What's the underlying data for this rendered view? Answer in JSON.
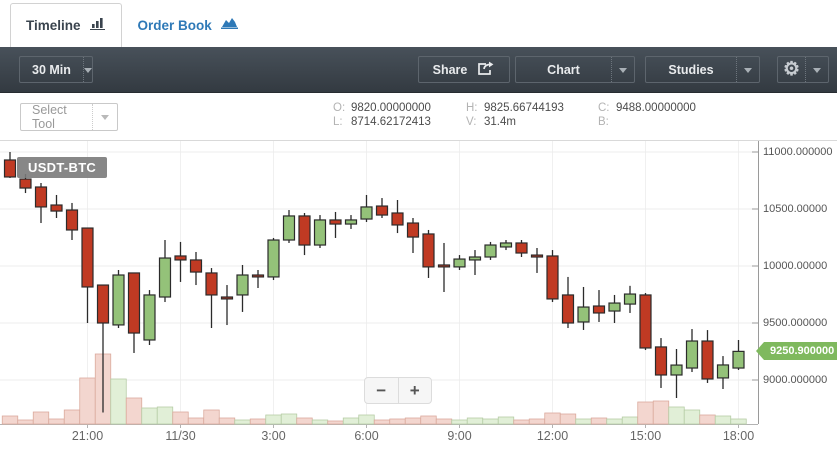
{
  "tabs": {
    "timeline": "Timeline",
    "order_book": "Order Book"
  },
  "toolbar": {
    "interval": "30 Min",
    "share": "Share",
    "chart": "Chart",
    "studies": "Studies",
    "settings_glyph": "⚙"
  },
  "subtoolbar": {
    "select_tool": "Select Tool",
    "legend": {
      "o_label": "O:",
      "o": "9820.00000000",
      "h_label": "H:",
      "h": "9825.66744193",
      "c_label": "C:",
      "c": "9488.00000000",
      "l_label": "L:",
      "l": "8714.62172413",
      "v_label": "V:",
      "v": "31.4m",
      "b_label": "B:",
      "b": ""
    }
  },
  "chart": {
    "symbol": "USDT-BTC",
    "price_badge": "9250.900000",
    "zoom_out": "−",
    "zoom_in": "+"
  },
  "icons": {
    "timeline_tab": "bar-chart-icon",
    "order_book_tab": "area-chart-icon",
    "share": "share-icon",
    "settings": "gear-icon",
    "dropdowns": "chevron-down-icon"
  },
  "colors": {
    "up_fill": "#94c279",
    "down_fill": "#c03a23",
    "candle_stroke": "#2b2b2b",
    "vol_up_fill": "#e1efd7",
    "vol_up_stroke": "#b6cda6",
    "vol_down_fill": "#f3d6cf",
    "vol_down_stroke": "#dbaa9d",
    "grid": "#ececec",
    "axis": "#9a9a9a",
    "badge_green": "#7fb95e",
    "link_blue": "#2e79b7",
    "toolbar_dark_top": "#48515a",
    "toolbar_dark_bottom": "#333a41"
  },
  "chart_data": {
    "type": "candlestick",
    "symbol": "USDT-BTC",
    "interval": "30 Min",
    "last_price": 9250.9,
    "y_axis": {
      "min": 8650,
      "max": 11090,
      "ticks": [
        {
          "value": 11000,
          "label": "11000.000000"
        },
        {
          "value": 10500,
          "label": "10500.00000"
        },
        {
          "value": 10000,
          "label": "10000.00000"
        },
        {
          "value": 9500,
          "label": "9500.000000"
        },
        {
          "value": 9000,
          "label": "9000.000000"
        }
      ]
    },
    "x_ticks": [
      {
        "index": 5,
        "label": "21:00"
      },
      {
        "index": 11,
        "label": "11/30"
      },
      {
        "index": 17,
        "label": "3:00"
      },
      {
        "index": 23,
        "label": "6:00"
      },
      {
        "index": 29,
        "label": "9:00"
      },
      {
        "index": 35,
        "label": "12:00"
      },
      {
        "index": 41,
        "label": "15:00"
      },
      {
        "index": 47,
        "label": "18:00"
      }
    ],
    "series_format": [
      "open",
      "high",
      "low",
      "close",
      "volume_rel"
    ],
    "candles": [
      [
        10930,
        11000,
        10772,
        10781,
        8
      ],
      [
        10763,
        10807,
        10640,
        10684,
        4
      ],
      [
        10693,
        10728,
        10377,
        10518,
        12
      ],
      [
        10535,
        10623,
        10421,
        10482,
        5
      ],
      [
        10491,
        10553,
        10228,
        10316,
        14
      ],
      [
        10333,
        10333,
        9500,
        9816,
        46
      ],
      [
        9833,
        9833,
        8715,
        9500,
        70
      ],
      [
        9483,
        9965,
        9456,
        9921,
        45
      ],
      [
        9939,
        9939,
        9237,
        9412,
        26
      ],
      [
        9351,
        9789,
        9307,
        9746,
        16
      ],
      [
        9728,
        10228,
        9684,
        10070,
        17
      ],
      [
        10088,
        10211,
        9860,
        10053,
        12
      ],
      [
        10053,
        10123,
        9833,
        9947,
        6
      ],
      [
        9939,
        9982,
        9456,
        9746,
        14
      ],
      [
        9728,
        9833,
        9482,
        9711,
        6
      ],
      [
        9746,
        10009,
        9597,
        9921,
        4
      ],
      [
        9921,
        9965,
        9807,
        9904,
        5
      ],
      [
        9904,
        10246,
        9877,
        10228,
        9
      ],
      [
        10228,
        10491,
        10202,
        10439,
        10
      ],
      [
        10439,
        10465,
        10096,
        10184,
        6
      ],
      [
        10184,
        10447,
        10158,
        10404,
        4
      ],
      [
        10404,
        10474,
        10246,
        10368,
        3
      ],
      [
        10368,
        10447,
        10325,
        10404,
        6
      ],
      [
        10412,
        10623,
        10386,
        10518,
        9
      ],
      [
        10526,
        10596,
        10421,
        10447,
        4
      ],
      [
        10465,
        10579,
        10289,
        10360,
        5
      ],
      [
        10377,
        10421,
        10114,
        10254,
        6
      ],
      [
        10281,
        10316,
        9895,
        9992,
        8
      ],
      [
        10009,
        10202,
        9772,
        9992,
        5
      ],
      [
        9992,
        10096,
        9965,
        10061,
        4
      ],
      [
        10053,
        10140,
        9921,
        10079,
        6
      ],
      [
        10079,
        10211,
        10053,
        10184,
        5
      ],
      [
        10167,
        10228,
        10140,
        10202,
        7
      ],
      [
        10202,
        10228,
        10079,
        10114,
        4
      ],
      [
        10096,
        10158,
        9939,
        10079,
        5
      ],
      [
        10088,
        10140,
        9684,
        9711,
        11
      ],
      [
        9746,
        9904,
        9456,
        9500,
        10
      ],
      [
        9509,
        9816,
        9439,
        9640,
        5
      ],
      [
        9649,
        9789,
        9509,
        9588,
        6
      ],
      [
        9605,
        9746,
        9500,
        9675,
        5
      ],
      [
        9666,
        9826,
        9588,
        9754,
        7
      ],
      [
        9746,
        9763,
        9263,
        9281,
        22
      ],
      [
        9290,
        9368,
        8930,
        9044,
        23
      ],
      [
        9044,
        9272,
        8842,
        9131,
        17
      ],
      [
        9105,
        9447,
        9070,
        9342,
        14
      ],
      [
        9342,
        9438,
        8974,
        9009,
        9
      ],
      [
        9018,
        9210,
        8921,
        9132,
        8
      ],
      [
        9105,
        9351,
        9088,
        9251,
        5
      ]
    ]
  }
}
